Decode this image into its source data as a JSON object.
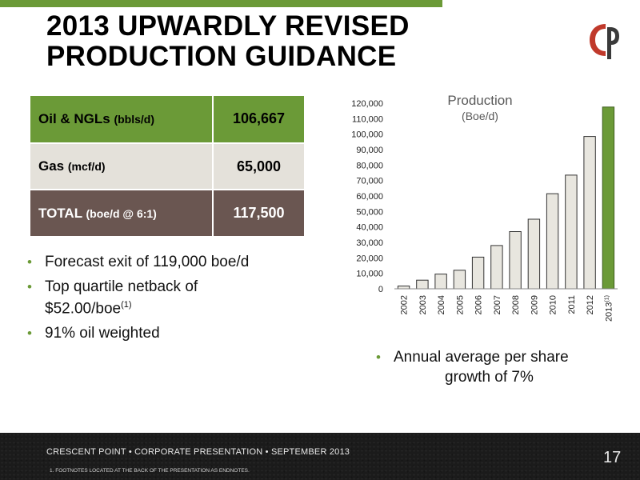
{
  "title": {
    "line1": "2013 UPWARDLY REVISED",
    "line2": "PRODUCTION GUIDANCE"
  },
  "colors": {
    "accent": "#6b9a37",
    "gas_row": "#e4e1da",
    "total_row": "#6a5651",
    "bar": "#e8e6df",
    "highlight_bar": "#6b9a37",
    "logo_red": "#c0392b"
  },
  "table": {
    "rows": [
      {
        "label": "Oil & NGLs",
        "unit": "(bbls/d)",
        "value": "106,667"
      },
      {
        "label": "Gas",
        "unit": "(mcf/d)",
        "value": "65,000"
      },
      {
        "label": "TOTAL",
        "unit": "(boe/d @ 6:1)",
        "value": "117,500"
      }
    ]
  },
  "bullets_left": [
    {
      "text": "Forecast exit of 119,000 boe/d"
    },
    {
      "text": "Top quartile netback of $52.00/boe",
      "sup": "(1)"
    },
    {
      "text": "91% oil weighted"
    }
  ],
  "chart_data": {
    "type": "bar",
    "title": "Production",
    "subtitle": "(Boe/d)",
    "categories": [
      "2002",
      "2003",
      "2004",
      "2005",
      "2006",
      "2007",
      "2008",
      "2009",
      "2010",
      "2011",
      "2012",
      "2013"
    ],
    "last_category_sup": "(1)",
    "values": [
      1800,
      5600,
      9500,
      12000,
      20500,
      28000,
      37000,
      45000,
      61500,
      73500,
      98500,
      117500
    ],
    "ylim": [
      0,
      120000
    ],
    "yticks": [
      "0",
      "10,000",
      "20,000",
      "30,000",
      "40,000",
      "50,000",
      "60,000",
      "70,000",
      "80,000",
      "90,000",
      "100,000",
      "110,000",
      "120,000"
    ],
    "highlight_index": 11,
    "grid": false,
    "legend": "none"
  },
  "bullet_right": {
    "line1": "Annual average per share",
    "line2": "growth of 7%"
  },
  "footer": {
    "text": "CRESCENT POINT  •  CORPORATE PRESENTATION  •  SEPTEMBER 2013",
    "footnote": "1.      FOOTNOTES LOCATED AT THE BACK OF THE PRESENTATION AS ENDNOTES.",
    "page_number": "17"
  }
}
